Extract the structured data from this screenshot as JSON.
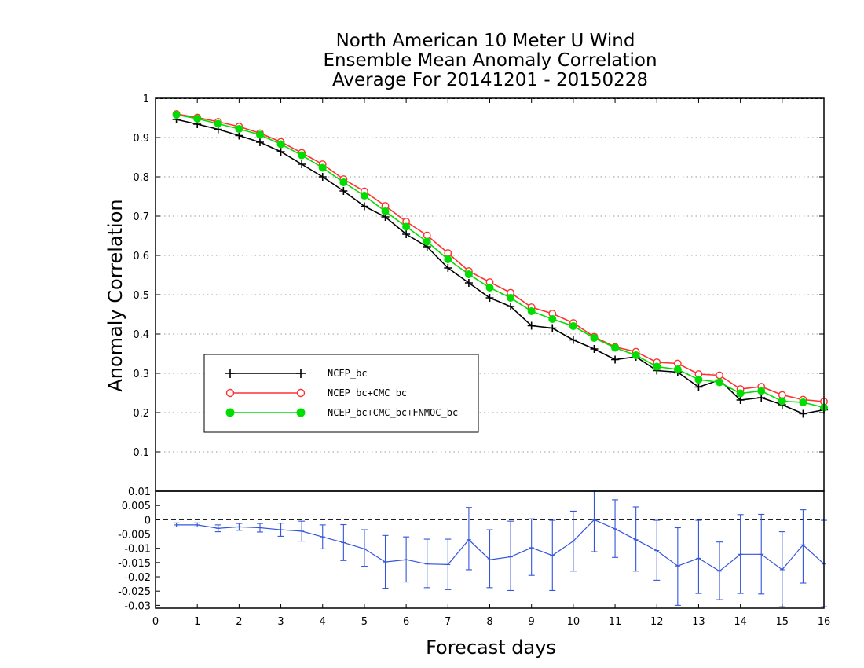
{
  "chart_data": [
    {
      "type": "line",
      "title": [
        "North American 10 Meter U Wind",
        "Ensemble Mean Anomaly Correlation",
        "Average For 20141201 - 20150228"
      ],
      "xlabel": "Forecast days",
      "ylabel": "Anomaly Correlation",
      "xlim": [
        0,
        16
      ],
      "ylim": [
        0,
        1
      ],
      "x_ticks": [
        "0",
        "1",
        "2",
        "3",
        "4",
        "5",
        "6",
        "7",
        "8",
        "9",
        "10",
        "11",
        "12",
        "13",
        "14",
        "15",
        "16"
      ],
      "y_ticks": [
        "0.1",
        "0.2",
        "0.3",
        "0.4",
        "0.5",
        "0.6",
        "0.7",
        "0.8",
        "0.9",
        "1"
      ],
      "grid": "horizontal dotted",
      "legend_position": "lower-left",
      "x": [
        0.5,
        1,
        1.5,
        2,
        2.5,
        3,
        3.5,
        4,
        4.5,
        5,
        5.5,
        6,
        6.5,
        7,
        7.5,
        8,
        8.5,
        9,
        9.5,
        10,
        10.5,
        11,
        11.5,
        12,
        12.5,
        13,
        13.5,
        14,
        14.5,
        15,
        15.5,
        16
      ],
      "series": [
        {
          "name": "NCEP_bc",
          "color": "#000000",
          "marker": "plus",
          "values": [
            0.946,
            0.934,
            0.921,
            0.905,
            0.888,
            0.864,
            0.832,
            0.8,
            0.764,
            0.725,
            0.698,
            0.654,
            0.622,
            0.568,
            0.53,
            0.492,
            0.47,
            0.421,
            0.415,
            0.385,
            0.362,
            0.335,
            0.342,
            0.307,
            0.303,
            0.265,
            0.283,
            0.232,
            0.238,
            0.22,
            0.197,
            0.207
          ]
        },
        {
          "name": "NCEP_bc+CMC_bc",
          "color": "#ff3030",
          "marker": "open-circle",
          "values": [
            0.96,
            0.951,
            0.94,
            0.928,
            0.911,
            0.889,
            0.861,
            0.832,
            0.794,
            0.763,
            0.726,
            0.686,
            0.651,
            0.606,
            0.56,
            0.532,
            0.505,
            0.468,
            0.452,
            0.428,
            0.393,
            0.367,
            0.355,
            0.328,
            0.325,
            0.298,
            0.295,
            0.26,
            0.266,
            0.245,
            0.233,
            0.228
          ]
        },
        {
          "name": "NCEP_bc+CMC_bc+FNMOC_bc",
          "color": "#00dd00",
          "marker": "filled-circle",
          "values": [
            0.958,
            0.948,
            0.935,
            0.922,
            0.907,
            0.883,
            0.855,
            0.823,
            0.786,
            0.752,
            0.712,
            0.673,
            0.635,
            0.59,
            0.552,
            0.518,
            0.492,
            0.458,
            0.438,
            0.42,
            0.39,
            0.365,
            0.346,
            0.317,
            0.31,
            0.284,
            0.277,
            0.249,
            0.255,
            0.229,
            0.226,
            0.213
          ]
        }
      ]
    },
    {
      "type": "line",
      "xlim": [
        0,
        16
      ],
      "ylim": [
        -0.031,
        0.01
      ],
      "y_ticks": [
        "0.01",
        "0.005",
        "0",
        "-0.005",
        "-0.01",
        "-0.015",
        "-0.02",
        "-0.025",
        "-0.03"
      ],
      "zero_line": "dashed",
      "series": [
        {
          "color": "#3355dd",
          "error_bars": true,
          "x": [
            0.5,
            1,
            1.5,
            2,
            2.5,
            3,
            3.5,
            4,
            4.5,
            5,
            5.5,
            6,
            6.5,
            7,
            7.5,
            8,
            8.5,
            9,
            9.5,
            10,
            10.5,
            11,
            11.5,
            12,
            12.5,
            13,
            13.5,
            14,
            14.5,
            15,
            15.5,
            16
          ],
          "values": [
            -0.0018,
            -0.0018,
            -0.003,
            -0.0025,
            -0.0028,
            -0.0035,
            -0.004,
            -0.006,
            -0.008,
            -0.0102,
            -0.0148,
            -0.014,
            -0.0155,
            -0.0157,
            -0.007,
            -0.014,
            -0.013,
            -0.0098,
            -0.0125,
            -0.0075,
            0.0,
            -0.0032,
            -0.007,
            -0.0108,
            -0.0162,
            -0.0135,
            -0.018,
            -0.0121,
            -0.0121,
            -0.0175,
            -0.0088,
            -0.0155
          ],
          "lower": [
            -0.0025,
            -0.0025,
            -0.0042,
            -0.0037,
            -0.0043,
            -0.0058,
            -0.0075,
            -0.0102,
            -0.0143,
            -0.0163,
            -0.024,
            -0.0218,
            -0.0238,
            -0.0245,
            -0.0175,
            -0.0238,
            -0.0248,
            -0.0195,
            -0.0248,
            -0.018,
            -0.0112,
            -0.0132,
            -0.018,
            -0.0212,
            -0.03,
            -0.0258,
            -0.028,
            -0.0258,
            -0.026,
            -0.0305,
            -0.0222,
            -0.0305
          ],
          "upper": [
            -0.0011,
            -0.0011,
            -0.0018,
            -0.0013,
            -0.0013,
            -0.0012,
            -0.0005,
            -0.0018,
            -0.0017,
            -0.0035,
            -0.0055,
            -0.006,
            -0.0068,
            -0.0068,
            0.0043,
            -0.0035,
            -0.0005,
            0.0003,
            -0.0002,
            0.003,
            0.0105,
            0.007,
            0.0045,
            -0.0002,
            -0.0028,
            -0.0002,
            -0.0078,
            0.0018,
            0.0019,
            -0.0042,
            0.0035,
            -0.0002
          ]
        }
      ]
    }
  ]
}
